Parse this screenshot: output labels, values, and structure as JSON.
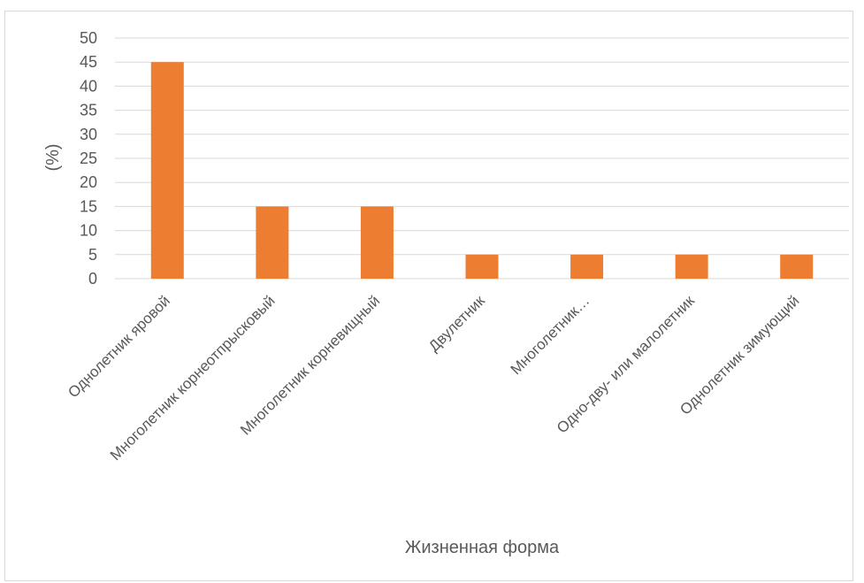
{
  "chart_data": {
    "type": "bar",
    "title": "",
    "xlabel": "Жизненная форма",
    "ylabel": "(%)",
    "categories": [
      "Однолетник яровой",
      "Многолетник корнеотпрысковый",
      "Многолетник корневищный",
      "Двулетник",
      "Многолетник…",
      "Одно-дву- или малолетник",
      "Однолетник зимующий"
    ],
    "values": [
      45,
      15,
      15,
      5,
      5,
      5,
      5
    ],
    "ylim": [
      0,
      50
    ],
    "yticks": [
      0,
      5,
      10,
      15,
      20,
      25,
      30,
      35,
      40,
      45,
      50
    ],
    "grid": true,
    "legend": "none",
    "bar_color": "#ed7d31",
    "grid_color": "#d9d9d9",
    "text_color": "#595959"
  }
}
